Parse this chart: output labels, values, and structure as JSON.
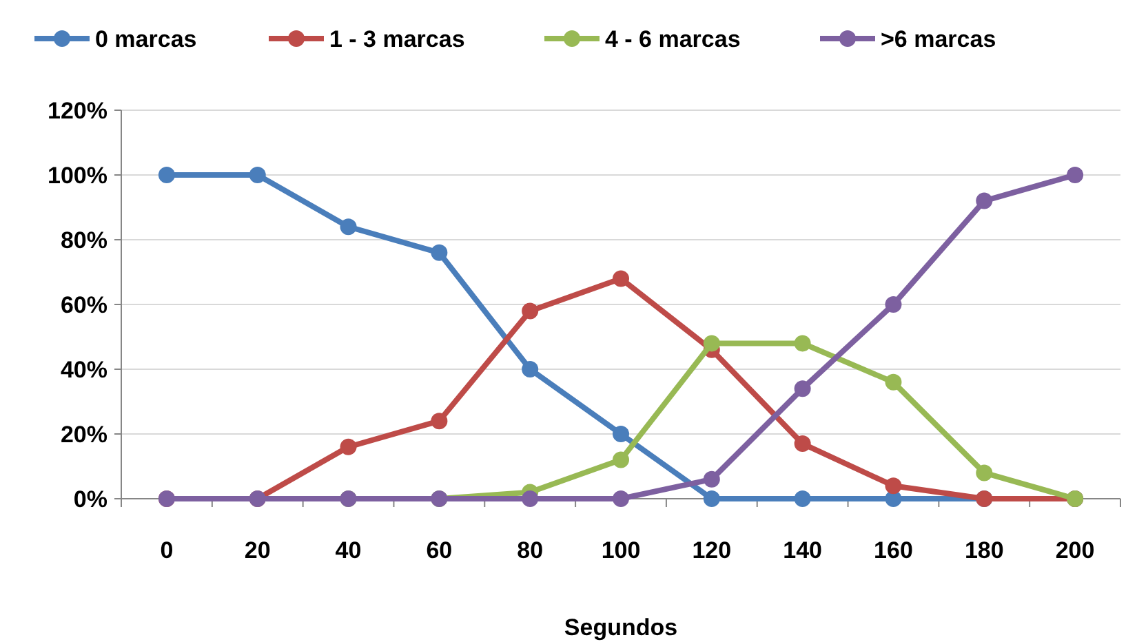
{
  "chart_data": {
    "type": "line",
    "xlabel": "Segundos",
    "categories": [
      "0",
      "20",
      "40",
      "60",
      "80",
      "100",
      "120",
      "140",
      "160",
      "180",
      "200"
    ],
    "series": [
      {
        "name": "0 marcas",
        "color": "#4a7ebb",
        "values": [
          100,
          100,
          84,
          76,
          40,
          20,
          0,
          0,
          0,
          0,
          0
        ]
      },
      {
        "name": "1 - 3 marcas",
        "color": "#be4b48",
        "values": [
          0,
          0,
          16,
          24,
          58,
          68,
          46,
          17,
          4,
          0,
          0
        ]
      },
      {
        "name": "4 - 6 marcas",
        "color": "#98b954",
        "values": [
          null,
          null,
          0,
          0,
          2,
          12,
          48,
          48,
          36,
          8,
          0
        ]
      },
      {
        "name": ">6 marcas",
        "color": "#7d60a0",
        "values": [
          0,
          0,
          0,
          0,
          0,
          0,
          6,
          34,
          60,
          92,
          100
        ]
      }
    ],
    "ylim": [
      0,
      120
    ],
    "yticks": [
      {
        "value": 0,
        "label": "0%"
      },
      {
        "value": 20,
        "label": "20%"
      },
      {
        "value": 40,
        "label": "40%"
      },
      {
        "value": 60,
        "label": "60%"
      },
      {
        "value": 80,
        "label": "80%"
      },
      {
        "value": 100,
        "label": "100%"
      },
      {
        "value": 120,
        "label": "120%"
      }
    ],
    "grid": "y",
    "legend": "top",
    "marker": "circle",
    "line_style": "solid"
  }
}
